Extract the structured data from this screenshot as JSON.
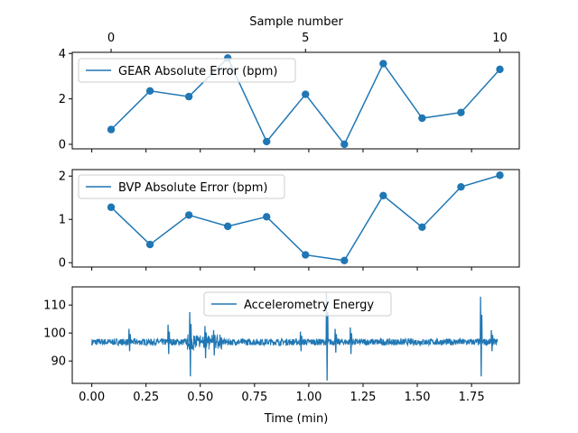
{
  "chart_data": [
    {
      "type": "line",
      "title": "",
      "top_xlabel": "Sample number",
      "top_xticks": [
        0,
        5,
        10
      ],
      "top_xlim": [
        -1,
        10.5
      ],
      "ylabel": "",
      "ylim": [
        -0.2,
        4.05
      ],
      "yticks": [
        0,
        2,
        4
      ],
      "legend_position": "upper left",
      "markers": true,
      "series": [
        {
          "name": "GEAR Absolute Error (bpm)",
          "x": [
            0,
            1,
            2,
            3,
            4,
            5,
            6,
            7,
            8,
            9,
            10
          ],
          "values": [
            0.65,
            2.35,
            2.1,
            3.8,
            0.12,
            2.2,
            0.0,
            3.55,
            1.15,
            1.4,
            3.3
          ]
        }
      ]
    },
    {
      "type": "line",
      "title": "",
      "ylabel": "",
      "ylim": [
        -0.1,
        2.15
      ],
      "yticks": [
        0,
        1,
        2
      ],
      "legend_position": "upper left",
      "markers": true,
      "series": [
        {
          "name": "BVP Absolute Error (bpm)",
          "x": [
            0,
            1,
            2,
            3,
            4,
            5,
            6,
            7,
            8,
            9,
            10
          ],
          "values": [
            1.28,
            0.42,
            1.1,
            0.84,
            1.06,
            0.18,
            0.05,
            1.55,
            0.82,
            1.75,
            2.02
          ]
        }
      ]
    },
    {
      "type": "line",
      "title": "",
      "xlabel": "Time (min)",
      "xlim": [
        -0.09,
        1.97
      ],
      "xticks": [
        "0.00",
        "0.25",
        "0.50",
        "0.75",
        "1.00",
        "1.25",
        "1.50",
        "1.75"
      ],
      "ylabel": "",
      "ylim": [
        82,
        116.5
      ],
      "yticks": [
        90,
        100,
        110
      ],
      "legend_position": "upper center",
      "signal": {
        "baseline": 96.8,
        "noise_amplitude": 1.2,
        "duration_min": 1.87,
        "spikes": [
          {
            "t": 0.17,
            "high": 101.5,
            "low": 93.5
          },
          {
            "t": 0.35,
            "high": 103.0,
            "low": 92.5
          },
          {
            "t": 0.45,
            "high": 107.5,
            "low": 84.5
          },
          {
            "t": 0.52,
            "high": 102.5,
            "low": 91.0
          },
          {
            "t": 0.56,
            "high": 101.0,
            "low": 92.0
          },
          {
            "t": 0.96,
            "high": 100.5,
            "low": 93.5
          },
          {
            "t": 1.08,
            "high": 114.5,
            "low": 83.0
          },
          {
            "t": 1.12,
            "high": 101.5,
            "low": 93.0
          },
          {
            "t": 1.19,
            "high": 102.0,
            "low": 92.5
          },
          {
            "t": 1.79,
            "high": 113.0,
            "low": 84.5
          },
          {
            "t": 1.84,
            "high": 101.0,
            "low": 93.5
          }
        ]
      },
      "series": [
        {
          "name": "Accelerometry Energy"
        }
      ]
    }
  ],
  "colors": {
    "series": "#1f77b4",
    "axes": "#000000",
    "legend_border": "#cccccc",
    "background": "#ffffff"
  }
}
